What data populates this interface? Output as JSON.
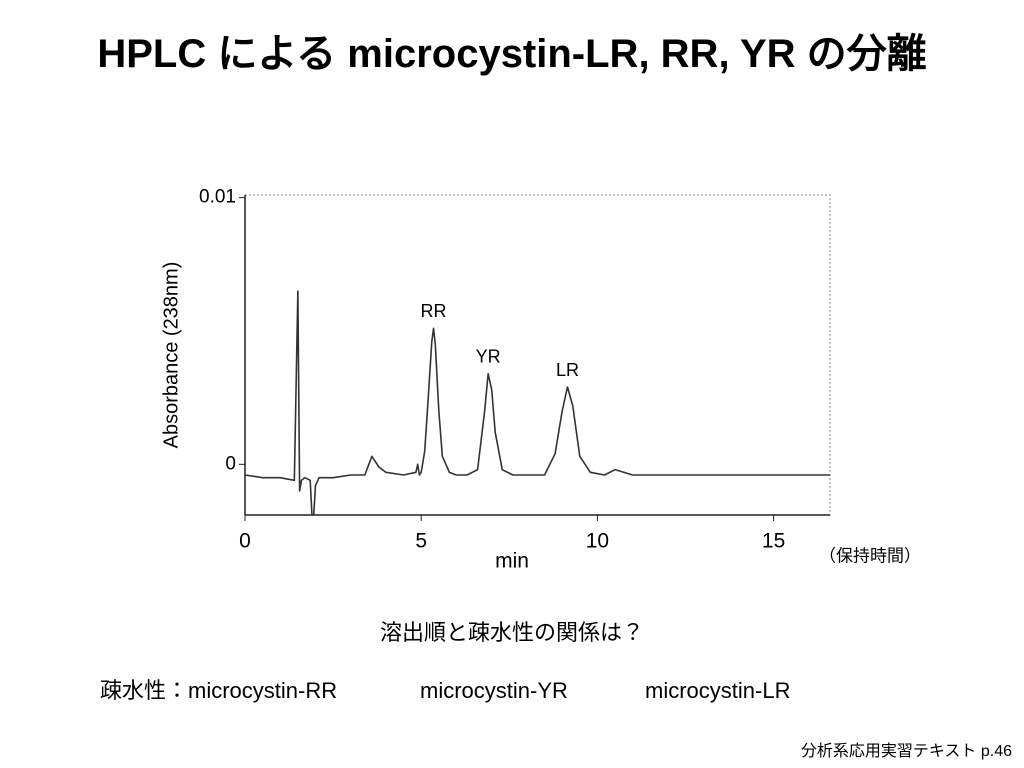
{
  "header": {
    "title": "HPLC による microcystin-LR, RR, YR の分離"
  },
  "chart_data": {
    "type": "line",
    "xlabel": "min",
    "ylabel": "Absorbance (238nm)",
    "note": "（保持時間）",
    "xlim": [
      0,
      16.6
    ],
    "ylim": [
      -0.0019,
      0.0101
    ],
    "xticks": [
      0,
      5,
      10,
      15
    ],
    "yticks": [
      0,
      0.01
    ],
    "x": [
      0,
      0.5,
      1.0,
      1.4,
      1.5,
      1.55,
      1.6,
      1.7,
      1.85,
      1.9,
      1.95,
      2.0,
      2.1,
      2.5,
      3.0,
      3.4,
      3.6,
      3.8,
      4.0,
      4.5,
      4.85,
      4.9,
      4.95,
      5.0,
      5.1,
      5.2,
      5.3,
      5.35,
      5.4,
      5.5,
      5.6,
      5.8,
      6.0,
      6.3,
      6.6,
      6.8,
      6.9,
      7.0,
      7.1,
      7.3,
      7.6,
      8.0,
      8.5,
      8.8,
      9.0,
      9.15,
      9.3,
      9.5,
      9.8,
      10.2,
      10.5,
      11,
      12,
      13,
      14,
      15,
      16,
      16.6
    ],
    "series": [
      {
        "color": "#333333",
        "values": [
          -0.0004,
          -0.0005,
          -0.0005,
          -0.0006,
          0.0065,
          -0.001,
          -0.0006,
          -0.0005,
          -0.0006,
          -0.0019,
          -0.0019,
          -0.0008,
          -0.0005,
          -0.0005,
          -0.0004,
          -0.0004,
          0.0003,
          -0.0001,
          -0.0003,
          -0.0004,
          -0.0003,
          0.0,
          -0.0004,
          -0.0003,
          0.0005,
          0.0025,
          0.0046,
          0.0051,
          0.0045,
          0.002,
          0.0003,
          -0.0003,
          -0.0004,
          -0.0004,
          -0.0002,
          0.002,
          0.0034,
          0.0028,
          0.0012,
          -0.0002,
          -0.0004,
          -0.0004,
          -0.0004,
          0.0004,
          0.002,
          0.0029,
          0.0022,
          0.0003,
          -0.0003,
          -0.0004,
          -0.0002,
          -0.0004,
          -0.0004,
          -0.0004,
          -0.0004,
          -0.0004,
          -0.0004,
          -0.0004
        ]
      }
    ],
    "annotations": [
      {
        "text": "RR",
        "x": 5.35,
        "y": 0.0051
      },
      {
        "text": "YR",
        "x": 6.9,
        "y": 0.0034
      },
      {
        "text": "LR",
        "x": 9.15,
        "y": 0.0029
      }
    ]
  },
  "question": "溶出順と疎水性の関係は？",
  "hydrophobicity": {
    "label": "疎水性：microcystin-RR",
    "items": [
      "microcystin-YR",
      "microcystin-LR"
    ]
  },
  "source": "分析系応用実習テキスト p.46"
}
